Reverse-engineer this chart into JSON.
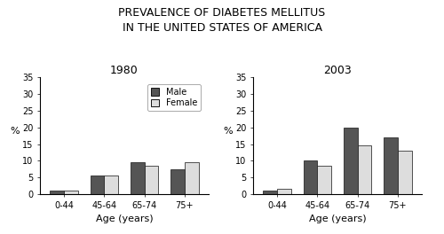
{
  "title_line1": "PREVALENCE OF DIABETES MELLITUS",
  "title_line2": "IN THE UNITED STATES OF AMERICA",
  "subtitle_1980": "1980",
  "subtitle_2003": "2003",
  "categories": [
    "0-44",
    "45-64",
    "65-74",
    "75+"
  ],
  "xlabel": "Age (years)",
  "ylabel": "%",
  "ylim": [
    0,
    35
  ],
  "yticks": [
    0,
    5,
    10,
    15,
    20,
    25,
    30,
    35
  ],
  "data_1980_male": [
    1.0,
    5.5,
    9.5,
    7.5
  ],
  "data_1980_female": [
    1.0,
    5.5,
    8.5,
    9.5
  ],
  "data_2003_male": [
    1.0,
    10.0,
    20.0,
    17.0
  ],
  "data_2003_female": [
    1.5,
    8.5,
    14.5,
    13.0
  ],
  "color_male": "#555555",
  "color_female": "#dddddd",
  "bar_edge_color": "#111111",
  "legend_labels": [
    "Male",
    "Female"
  ],
  "background_color": "#ffffff",
  "title_fontsize": 9,
  "axis_fontsize": 8,
  "tick_fontsize": 7,
  "bar_width": 0.35
}
